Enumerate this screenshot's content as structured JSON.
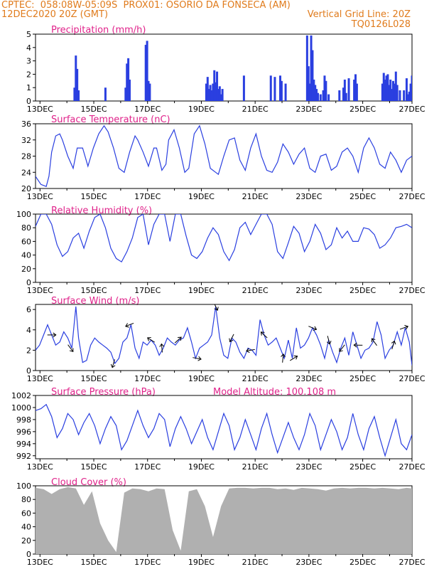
{
  "header": {
    "line1_left": "CPTEC:  058:08W-05:09S  PROX01: OSORIO DA FONSECA (AM)",
    "line2_left": "12DEC2020 20Z (GMT)",
    "line2_right": "Vertical Grid Line: 20Z",
    "line3_right": "TQ0126L028",
    "model_altitude": "Model Altitude: 100.108 m",
    "header_color": "#e07b1c",
    "title_color": "#e0228a",
    "series_color": "#2a3fe0",
    "cloud_color": "#b0b0b0"
  },
  "date_labels": [
    "13DEC",
    "15DEC",
    "17DEC",
    "19DEC",
    "21DEC",
    "23DEC",
    "25DEC",
    "27DEC"
  ],
  "chart_data": [
    {
      "type": "bar",
      "title": "Precipitation (mm/h)",
      "ylim": [
        0,
        5
      ],
      "yticks": [
        "0",
        "1",
        "2",
        "3",
        "4",
        "5"
      ],
      "x_unit": "days after 12DEC2020 20Z",
      "x": [
        1.45,
        1.5,
        1.55,
        1.6,
        2.6,
        3.35,
        3.4,
        3.45,
        3.5,
        4.1,
        4.15,
        4.2,
        4.25,
        6.35,
        6.4,
        6.45,
        6.5,
        6.55,
        6.6,
        6.65,
        6.7,
        6.75,
        6.8,
        6.85,
        6.9,
        6.95,
        7.75,
        8.75,
        8.9,
        9.1,
        9.15,
        9.3,
        10.1,
        10.15,
        10.2,
        10.25,
        10.3,
        10.35,
        10.4,
        10.45,
        10.5,
        10.6,
        10.7,
        10.75,
        10.8,
        10.9,
        11.3,
        11.45,
        11.5,
        11.55,
        11.65,
        11.85,
        11.9,
        11.95,
        12.9,
        12.95,
        13.0,
        13.05,
        13.1,
        13.15,
        13.2,
        13.25,
        13.3,
        13.35,
        13.4,
        13.45,
        13.55,
        13.7,
        13.8,
        13.85,
        13.9,
        13.95,
        14.0
      ],
      "values": [
        1.0,
        3.4,
        2.4,
        0.8,
        1.0,
        1.0,
        2.8,
        3.2,
        1.6,
        4.2,
        4.5,
        1.5,
        1.3,
        1.3,
        1.8,
        0.9,
        1.2,
        0.8,
        1.3,
        2.3,
        1.4,
        2.2,
        0.9,
        1.1,
        0.5,
        0.9,
        1.9,
        1.9,
        1.8,
        1.9,
        1.5,
        1.3,
        4.9,
        2.6,
        1.3,
        4.9,
        3.8,
        1.6,
        1.2,
        0.9,
        0.6,
        0.5,
        0.8,
        1.9,
        1.5,
        0.5,
        0.8,
        1.0,
        1.6,
        0.6,
        1.7,
        1.6,
        2.0,
        1.3,
        1.3,
        2.1,
        1.6,
        1.9,
        2.0,
        1.2,
        1.6,
        0.9,
        1.5,
        1.3,
        2.2,
        1.2,
        0.8,
        0.8,
        1.7,
        0.5,
        0.7,
        1.3,
        1.9
      ]
    },
    {
      "type": "line",
      "title": "Surface Temperature (nC)",
      "ylim": [
        20,
        36
      ],
      "yticks": [
        "20",
        "24",
        "28",
        "32",
        "36"
      ],
      "x_unit": "days after 12DEC2020 20Z",
      "x": [
        0,
        0.2,
        0.4,
        0.5,
        0.6,
        0.75,
        0.9,
        1.0,
        1.2,
        1.4,
        1.55,
        1.75,
        1.95,
        2.15,
        2.35,
        2.55,
        2.7,
        2.9,
        3.1,
        3.3,
        3.5,
        3.7,
        3.8,
        4.0,
        4.2,
        4.4,
        4.5,
        4.7,
        4.85,
        4.95,
        5.15,
        5.35,
        5.55,
        5.7,
        5.9,
        6.1,
        6.3,
        6.5,
        6.7,
        6.8,
        7.0,
        7.2,
        7.4,
        7.6,
        7.8,
        8.0,
        8.2,
        8.4,
        8.6,
        8.8,
        9.0,
        9.2,
        9.4,
        9.6,
        9.8,
        10.0,
        10.2,
        10.4,
        10.6,
        10.8,
        11.0,
        11.2,
        11.4,
        11.6,
        11.8,
        12.0,
        12.2,
        12.4,
        12.6,
        12.8,
        13.0,
        13.2,
        13.4,
        13.6,
        13.8,
        14.0
      ],
      "values": [
        23,
        21,
        20.5,
        23,
        29,
        33,
        33.5,
        32,
        28,
        25,
        30,
        30,
        25.5,
        30,
        33.5,
        35.5,
        34,
        30,
        25,
        24,
        29,
        33,
        32,
        29,
        25.5,
        30,
        30,
        24.5,
        26,
        32,
        34.5,
        30,
        24,
        25,
        33.5,
        35.5,
        31,
        25,
        24,
        23.5,
        28,
        32,
        32.5,
        27,
        24.5,
        30,
        33.5,
        28,
        24.5,
        24,
        26.5,
        31,
        29,
        26,
        28.5,
        30,
        25,
        24,
        28,
        28.5,
        24.5,
        25.5,
        29,
        30,
        28,
        24,
        30,
        32.5,
        30,
        26,
        25,
        29,
        27,
        24,
        27,
        28
      ]
    },
    {
      "type": "line",
      "title": "Relative Humidity (%)",
      "ylim": [
        0,
        100
      ],
      "yticks": [
        "0",
        "20",
        "40",
        "60",
        "80",
        "100"
      ],
      "x_unit": "days after 12DEC2020 20Z",
      "x": [
        0,
        0.2,
        0.4,
        0.6,
        0.8,
        1.0,
        1.2,
        1.4,
        1.6,
        1.8,
        2.0,
        2.2,
        2.4,
        2.6,
        2.8,
        3.0,
        3.2,
        3.4,
        3.6,
        3.8,
        4.0,
        4.2,
        4.4,
        4.6,
        4.8,
        5.0,
        5.2,
        5.4,
        5.6,
        5.8,
        6.0,
        6.2,
        6.4,
        6.6,
        6.8,
        7.0,
        7.2,
        7.4,
        7.6,
        7.8,
        8.0,
        8.2,
        8.4,
        8.6,
        8.8,
        9.0,
        9.2,
        9.4,
        9.6,
        9.8,
        10.0,
        10.2,
        10.4,
        10.6,
        10.8,
        11.0,
        11.2,
        11.4,
        11.6,
        11.8,
        12.0,
        12.2,
        12.4,
        12.6,
        12.8,
        13.0,
        13.2,
        13.4,
        13.6,
        13.8,
        14.0
      ],
      "values": [
        82,
        100,
        100,
        85,
        55,
        38,
        45,
        65,
        72,
        50,
        75,
        95,
        100,
        80,
        50,
        35,
        30,
        45,
        65,
        95,
        100,
        55,
        85,
        100,
        100,
        60,
        100,
        100,
        68,
        40,
        35,
        45,
        65,
        80,
        70,
        45,
        32,
        48,
        80,
        88,
        70,
        85,
        100,
        100,
        85,
        45,
        35,
        58,
        82,
        72,
        45,
        60,
        85,
        72,
        48,
        55,
        80,
        65,
        75,
        60,
        60,
        80,
        78,
        70,
        50,
        55,
        65,
        80,
        82,
        85,
        80
      ]
    },
    {
      "type": "line",
      "title": "Surface Wind (m/s)",
      "ylim": [
        0,
        6.5
      ],
      "yticks": [
        "0",
        "2",
        "4",
        "6"
      ],
      "x_unit": "days after 12DEC2020 20Z",
      "x": [
        0,
        0.15,
        0.3,
        0.45,
        0.6,
        0.75,
        0.9,
        1.05,
        1.2,
        1.35,
        1.5,
        1.6,
        1.75,
        1.9,
        2.05,
        2.2,
        2.35,
        2.5,
        2.65,
        2.8,
        2.95,
        3.1,
        3.25,
        3.4,
        3.55,
        3.7,
        3.85,
        4.0,
        4.15,
        4.3,
        4.45,
        4.6,
        4.75,
        4.9,
        5.05,
        5.2,
        5.35,
        5.5,
        5.65,
        5.8,
        5.95,
        6.1,
        6.25,
        6.4,
        6.55,
        6.7,
        6.85,
        7.0,
        7.15,
        7.3,
        7.45,
        7.6,
        7.75,
        7.9,
        8.05,
        8.2,
        8.35,
        8.5,
        8.65,
        8.8,
        8.95,
        9.1,
        9.25,
        9.4,
        9.55,
        9.7,
        9.85,
        10.0,
        10.15,
        10.3,
        10.45,
        10.6,
        10.75,
        10.9,
        11.05,
        11.2,
        11.35,
        11.5,
        11.65,
        11.8,
        11.95,
        12.1,
        12.25,
        12.4,
        12.55,
        12.7,
        12.85,
        13.0,
        13.15,
        13.3,
        13.45,
        13.6,
        13.75,
        13.9,
        14.0
      ],
      "values": [
        2,
        2.5,
        3.5,
        4.5,
        3.5,
        2.5,
        2.8,
        3.8,
        3.2,
        2.2,
        6.3,
        3.2,
        0.8,
        1,
        2.5,
        3.2,
        2.8,
        2.5,
        2.2,
        1.8,
        0.7,
        1.2,
        2.8,
        3.2,
        4.5,
        2.2,
        1.2,
        2.8,
        2.5,
        3,
        2.5,
        1.5,
        2.2,
        3.2,
        2.8,
        2.5,
        3,
        3.2,
        4.2,
        2.8,
        1.2,
        2.2,
        2.5,
        2.8,
        3.5,
        6.3,
        3.2,
        1.5,
        1.2,
        3.2,
        2.8,
        1.8,
        1.2,
        2.2,
        2,
        1.5,
        5,
        3.5,
        2.5,
        2.8,
        3.2,
        2.2,
        1.2,
        3,
        1.2,
        4.2,
        2.2,
        2.5,
        3.2,
        4.2,
        3.5,
        2.5,
        1.2,
        3,
        1.8,
        0.8,
        2.2,
        3.2,
        1.5,
        3.8,
        2.5,
        1.2,
        2,
        2.2,
        2.8,
        4.8,
        3.5,
        1.2,
        2,
        2.5,
        3.8,
        2.5,
        4.2,
        2.8,
        0.5
      ]
    },
    {
      "type": "line",
      "title": "Surface Pressure (hPa)",
      "ylim": [
        991.5,
        1002
      ],
      "yticks": [
        "992",
        "994",
        "996",
        "998",
        "1000",
        "1002"
      ],
      "x_unit": "days after 12DEC2020 20Z",
      "x": [
        0,
        0.2,
        0.4,
        0.6,
        0.8,
        1.0,
        1.2,
        1.4,
        1.6,
        1.8,
        2.0,
        2.2,
        2.4,
        2.6,
        2.8,
        3.0,
        3.2,
        3.4,
        3.6,
        3.8,
        4.0,
        4.2,
        4.4,
        4.6,
        4.8,
        5.0,
        5.2,
        5.4,
        5.6,
        5.8,
        6.0,
        6.2,
        6.4,
        6.6,
        6.8,
        7.0,
        7.2,
        7.4,
        7.6,
        7.8,
        8.0,
        8.2,
        8.4,
        8.6,
        8.8,
        9.0,
        9.2,
        9.4,
        9.6,
        9.8,
        10.0,
        10.2,
        10.4,
        10.6,
        10.8,
        11.0,
        11.2,
        11.4,
        11.6,
        11.8,
        12.0,
        12.2,
        12.4,
        12.6,
        12.8,
        13.0,
        13.2,
        13.4,
        13.6,
        13.8,
        14.0
      ],
      "values": [
        999.5,
        999.8,
        1000.5,
        998.5,
        995,
        996.5,
        999,
        998,
        995.5,
        997.5,
        999,
        997,
        994,
        996.5,
        998.5,
        997,
        993,
        994.5,
        997,
        999.5,
        997,
        995,
        996.5,
        999,
        998,
        993.5,
        996.5,
        998.5,
        996.5,
        994,
        996,
        998,
        995,
        993,
        996,
        999,
        997,
        993,
        995,
        998,
        995.5,
        993,
        996.5,
        999,
        995.5,
        992.5,
        995,
        997.5,
        995,
        993,
        995.5,
        999,
        997,
        993,
        995.5,
        998,
        996,
        993,
        995,
        999,
        995.5,
        993,
        996.5,
        998.5,
        995,
        992,
        995,
        998,
        994,
        993,
        995.5
      ]
    },
    {
      "type": "area",
      "title": "Cloud Cover (%)",
      "ylim": [
        0,
        100
      ],
      "yticks": [
        "0",
        "20",
        "40",
        "60",
        "80",
        "100"
      ],
      "x_unit": "days after 12DEC2020 20Z",
      "x": [
        0,
        0.3,
        0.6,
        0.9,
        1.2,
        1.5,
        1.8,
        2.1,
        2.4,
        2.7,
        3.0,
        3.3,
        3.6,
        3.9,
        4.2,
        4.5,
        4.8,
        5.1,
        5.4,
        5.7,
        6.0,
        6.3,
        6.6,
        6.9,
        7.2,
        7.5,
        7.8,
        8.1,
        8.4,
        8.7,
        9.0,
        9.3,
        9.6,
        9.9,
        10.2,
        10.5,
        10.8,
        11.1,
        11.4,
        11.7,
        12.0,
        12.3,
        12.6,
        12.9,
        13.2,
        13.5,
        13.8,
        14.0
      ],
      "values": [
        97,
        95,
        88,
        95,
        98,
        96,
        72,
        92,
        45,
        20,
        3,
        90,
        96,
        95,
        92,
        96,
        95,
        35,
        5,
        92,
        95,
        70,
        25,
        70,
        96,
        97,
        97,
        96,
        97,
        97,
        95,
        96,
        94,
        97,
        96,
        95,
        93,
        96,
        97,
        96,
        97,
        97,
        96,
        97,
        96,
        95,
        97,
        96
      ]
    }
  ]
}
